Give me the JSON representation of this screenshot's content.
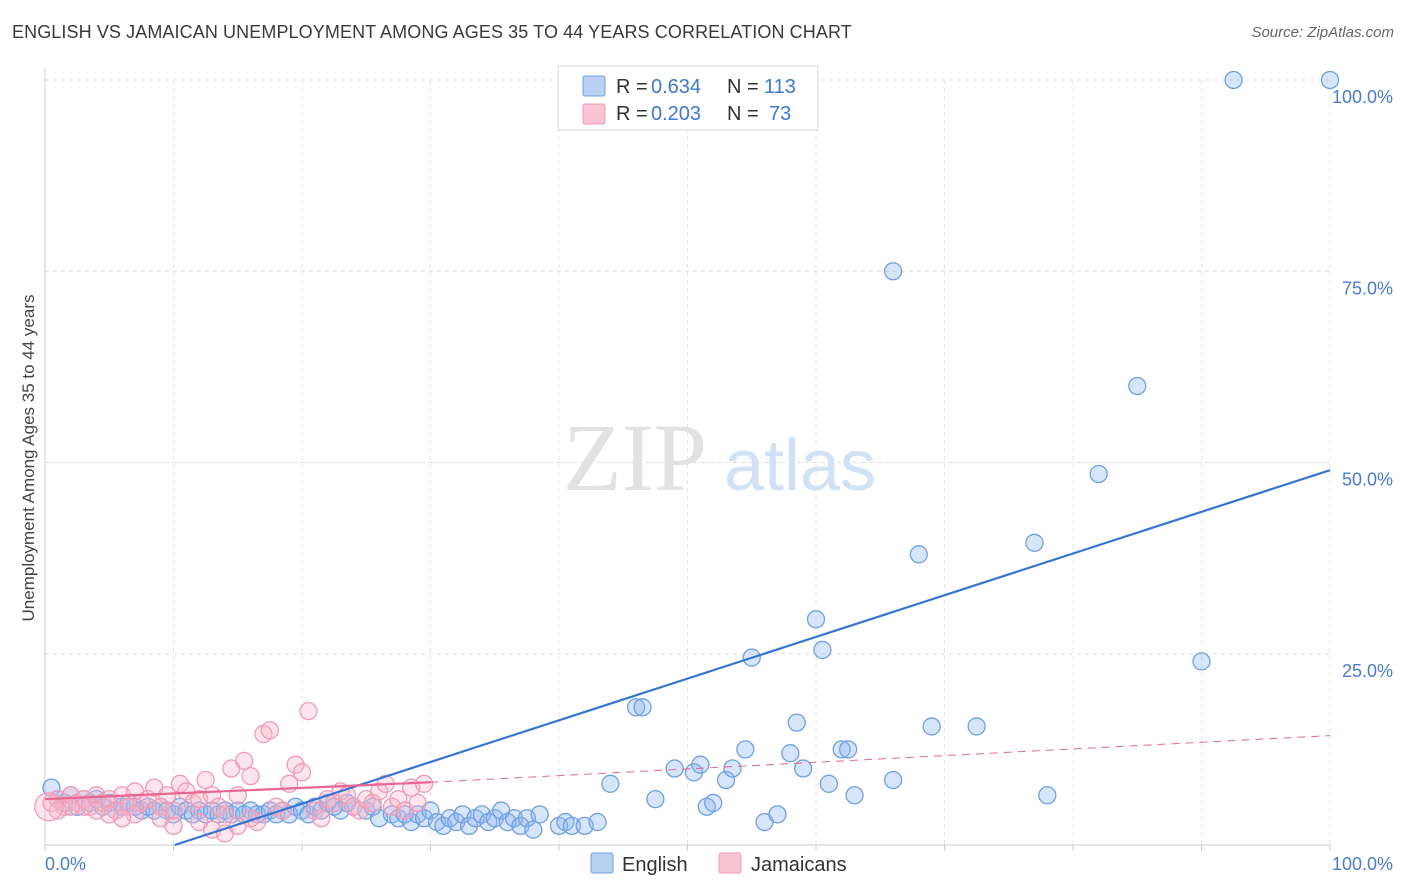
{
  "title": "ENGLISH VS JAMAICAN UNEMPLOYMENT AMONG AGES 35 TO 44 YEARS CORRELATION CHART",
  "source": "Source: ZipAtlas.com",
  "watermark": {
    "zip": "ZIP",
    "atlas": "atlas"
  },
  "colors": {
    "english": "#6fa0e6",
    "english_line": "#3575d3",
    "jamaicans": "#f19bb5",
    "jamaicans_line": "#e8668f",
    "tick": "#4a7cc9"
  },
  "chart_data": {
    "type": "scatter",
    "ylabel": "Unemployment Among Ages 35 to 44 years",
    "xlim": [
      0,
      100
    ],
    "ylim": [
      0,
      100
    ],
    "x_tick_labels": [
      "0.0%",
      "100.0%"
    ],
    "y_ticks": [
      {
        "value": 25,
        "label": "25.0%"
      },
      {
        "value": 50,
        "label": "50.0%"
      },
      {
        "value": 75,
        "label": "75.0%"
      },
      {
        "value": 100,
        "label": "100.0%"
      }
    ],
    "grid": true,
    "legend": {
      "placement": "top-center",
      "entries": [
        {
          "r_label": "R =",
          "r": "0.634",
          "n_label": "N =",
          "n": "113"
        },
        {
          "r_label": "R =",
          "r": "0.203",
          "n_label": "N =",
          "n": "73"
        }
      ]
    },
    "series": [
      {
        "name": "English",
        "trend": {
          "x": [
            0,
            100
          ],
          "y": [
            -5.5,
            49
          ]
        },
        "points": [
          [
            0.5,
            7.5
          ],
          [
            1,
            6
          ],
          [
            1.5,
            5.5
          ],
          [
            2,
            6.5
          ],
          [
            2.5,
            5
          ],
          [
            3,
            6
          ],
          [
            3.5,
            5.5
          ],
          [
            4,
            6
          ],
          [
            4.5,
            5
          ],
          [
            5,
            5.5
          ],
          [
            5.5,
            4.5
          ],
          [
            6,
            5
          ],
          [
            6.5,
            5.5
          ],
          [
            7,
            5
          ],
          [
            7.5,
            4.5
          ],
          [
            8,
            5
          ],
          [
            8.5,
            4.5
          ],
          [
            9,
            5
          ],
          [
            9.5,
            4.5
          ],
          [
            10,
            4
          ],
          [
            10.5,
            5
          ],
          [
            11,
            4.5
          ],
          [
            11.5,
            4
          ],
          [
            12,
            4.5
          ],
          [
            12.5,
            4
          ],
          [
            13,
            4.5
          ],
          [
            13.5,
            4
          ],
          [
            14,
            4.5
          ],
          [
            14.5,
            4
          ],
          [
            15,
            4.5
          ],
          [
            15.5,
            4
          ],
          [
            16,
            4.5
          ],
          [
            16.5,
            4
          ],
          [
            17,
            4
          ],
          [
            17.5,
            4.5
          ],
          [
            18,
            4
          ],
          [
            18.5,
            4.5
          ],
          [
            19,
            4
          ],
          [
            19.5,
            5
          ],
          [
            20,
            4.5
          ],
          [
            20.5,
            4
          ],
          [
            21,
            5
          ],
          [
            21.5,
            4.5
          ],
          [
            22,
            5.5
          ],
          [
            22.5,
            5
          ],
          [
            23,
            4.5
          ],
          [
            23.5,
            5.5
          ],
          [
            24,
            5
          ],
          [
            25,
            4.5
          ],
          [
            25.5,
            5
          ],
          [
            26,
            3.5
          ],
          [
            27,
            4
          ],
          [
            27.5,
            3.5
          ],
          [
            28,
            4
          ],
          [
            28.5,
            3
          ],
          [
            29,
            4
          ],
          [
            29.5,
            3.5
          ],
          [
            30,
            4.5
          ],
          [
            30.5,
            3
          ],
          [
            31,
            2.5
          ],
          [
            31.5,
            3.5
          ],
          [
            32,
            3
          ],
          [
            32.5,
            4
          ],
          [
            33,
            2.5
          ],
          [
            33.5,
            3.5
          ],
          [
            34,
            4
          ],
          [
            34.5,
            3
          ],
          [
            35,
            3.5
          ],
          [
            35.5,
            4.5
          ],
          [
            36,
            3
          ],
          [
            36.5,
            3.5
          ],
          [
            37,
            2.5
          ],
          [
            37.5,
            3.5
          ],
          [
            38,
            2
          ],
          [
            38.5,
            4
          ],
          [
            40,
            2.5
          ],
          [
            40.5,
            3
          ],
          [
            41,
            2.5
          ],
          [
            42,
            2.5
          ],
          [
            43,
            3
          ],
          [
            44,
            8
          ],
          [
            46,
            18
          ],
          [
            46.5,
            18
          ],
          [
            47.5,
            6
          ],
          [
            49,
            10
          ],
          [
            50.5,
            9.5
          ],
          [
            51,
            10.5
          ],
          [
            51.5,
            5
          ],
          [
            52,
            5.5
          ],
          [
            53,
            8.5
          ],
          [
            53.5,
            10
          ],
          [
            54.5,
            12.5
          ],
          [
            55,
            24.5
          ],
          [
            56,
            3
          ],
          [
            57,
            4
          ],
          [
            58,
            12
          ],
          [
            58.5,
            16
          ],
          [
            59,
            10
          ],
          [
            60,
            29.5
          ],
          [
            60.5,
            25.5
          ],
          [
            61,
            8
          ],
          [
            62,
            12.5
          ],
          [
            62.5,
            12.5
          ],
          [
            63,
            6.5
          ],
          [
            66,
            8.5
          ],
          [
            68,
            38
          ],
          [
            69,
            15.5
          ],
          [
            72.5,
            15.5
          ],
          [
            77,
            39.5
          ],
          [
            78,
            6.5
          ],
          [
            82,
            48.5
          ],
          [
            85,
            60
          ],
          [
            90,
            24
          ],
          [
            92.5,
            100
          ],
          [
            100,
            100
          ],
          [
            66,
            75
          ]
        ]
      },
      {
        "name": "Jamaicans",
        "trend": {
          "x": [
            0,
            30
          ],
          "y": [
            6,
            8.2
          ]
        },
        "trend_dashed": {
          "x": [
            30,
            100
          ],
          "y": [
            8.2,
            14.3
          ]
        },
        "points": [
          [
            0.5,
            5.5
          ],
          [
            1,
            6
          ],
          [
            1.5,
            5
          ],
          [
            2,
            6.5
          ],
          [
            2.5,
            5.5
          ],
          [
            3,
            6
          ],
          [
            3.5,
            5
          ],
          [
            4,
            6.5
          ],
          [
            4.5,
            5.5
          ],
          [
            5,
            6
          ],
          [
            5.5,
            4.5
          ],
          [
            6,
            6.5
          ],
          [
            6.5,
            5
          ],
          [
            7,
            7
          ],
          [
            7.5,
            5.5
          ],
          [
            8,
            6
          ],
          [
            8.5,
            7.5
          ],
          [
            9,
            5
          ],
          [
            9.5,
            6.5
          ],
          [
            10,
            4.5
          ],
          [
            10.5,
            8
          ],
          [
            11,
            7
          ],
          [
            11.5,
            5.5
          ],
          [
            12,
            6
          ],
          [
            12.5,
            8.5
          ],
          [
            13,
            6.5
          ],
          [
            13.5,
            5
          ],
          [
            14,
            4
          ],
          [
            14.5,
            10
          ],
          [
            15,
            6.5
          ],
          [
            15.5,
            11
          ],
          [
            16,
            9
          ],
          [
            16.5,
            3
          ],
          [
            17,
            14.5
          ],
          [
            17.5,
            15
          ],
          [
            18,
            5
          ],
          [
            18.5,
            4.5
          ],
          [
            19,
            8
          ],
          [
            19.5,
            10.5
          ],
          [
            20,
            9.5
          ],
          [
            20.5,
            17.5
          ],
          [
            21,
            4.5
          ],
          [
            21.5,
            3.5
          ],
          [
            22,
            6
          ],
          [
            22.5,
            5.5
          ],
          [
            23,
            7
          ],
          [
            23.5,
            6.5
          ],
          [
            24,
            5
          ],
          [
            24.5,
            4.5
          ],
          [
            25,
            6
          ],
          [
            25.5,
            5.5
          ],
          [
            26,
            7
          ],
          [
            26.5,
            8
          ],
          [
            27,
            5
          ],
          [
            27.5,
            6
          ],
          [
            28,
            4.5
          ],
          [
            28.5,
            7.5
          ],
          [
            29,
            5.5
          ],
          [
            29.5,
            8
          ],
          [
            10,
            2.5
          ],
          [
            12,
            3
          ],
          [
            13,
            2
          ],
          [
            14,
            1.5
          ],
          [
            15,
            2.5
          ],
          [
            16,
            3.5
          ],
          [
            9,
            3.5
          ],
          [
            7,
            4
          ],
          [
            6,
            3.5
          ],
          [
            5,
            4
          ],
          [
            4,
            4.5
          ],
          [
            3,
            5
          ],
          [
            2,
            5
          ],
          [
            1,
            4.5
          ]
        ]
      }
    ]
  },
  "bottom_legend": [
    "English",
    "Jamaicans"
  ]
}
